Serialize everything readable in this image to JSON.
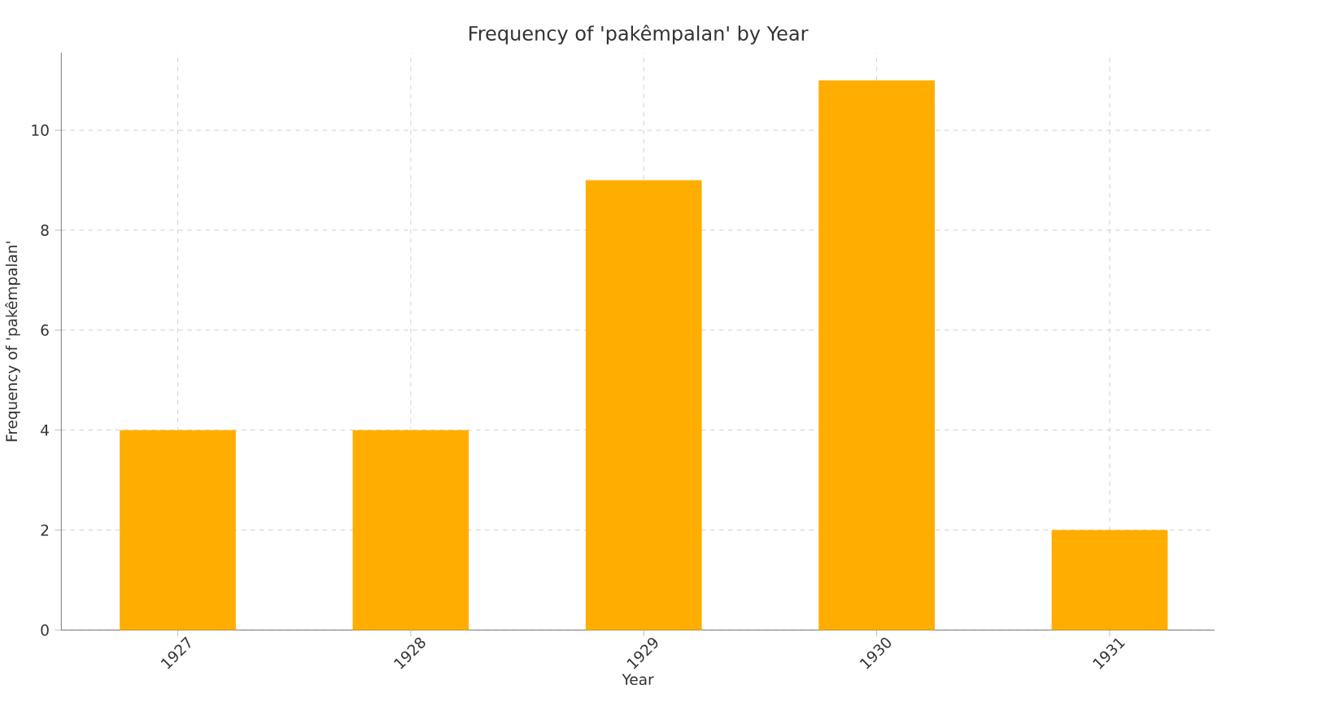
{
  "chart_data": {
    "type": "bar",
    "title": "Frequency of 'pakêmpalan' by Year",
    "xlabel": "Year",
    "ylabel": "Frequency of 'pakêmpalan'",
    "categories": [
      "1927",
      "1928",
      "1929",
      "1930",
      "1931"
    ],
    "values": [
      4,
      4,
      9,
      11,
      2
    ],
    "color": "#ffae00",
    "ylim": [
      0,
      11.55
    ],
    "yticks": [
      0,
      2,
      4,
      6,
      8,
      10
    ],
    "grid": true
  }
}
